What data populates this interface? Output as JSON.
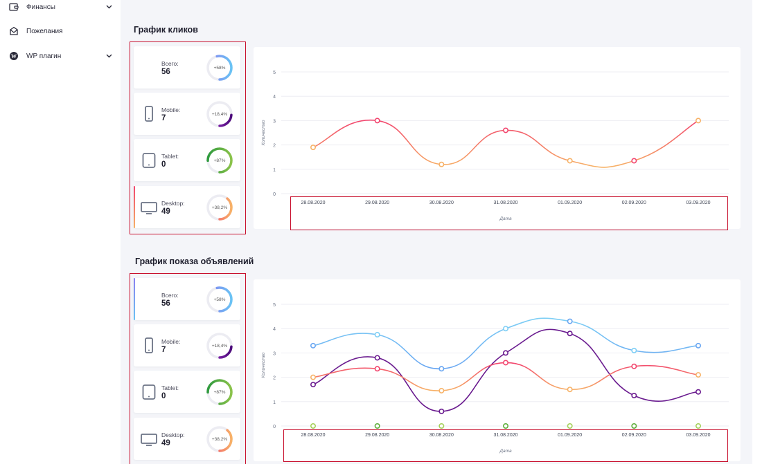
{
  "sidebar": {
    "items": [
      {
        "label": "Финансы",
        "icon": "wallet-icon",
        "has_submenu": true
      },
      {
        "label": "Пожелания",
        "icon": "inbox-icon",
        "has_submenu": false
      },
      {
        "label": "WP плагин",
        "icon": "wordpress-icon",
        "has_submenu": true
      }
    ]
  },
  "clicks": {
    "title": "График кликов",
    "stats": [
      {
        "label": "Всего:",
        "value": "56",
        "percent_label": "+58%",
        "percent": 58,
        "icon": "",
        "gradient": [
          "#69c3f4",
          "#8a7ff0"
        ]
      },
      {
        "label": "Mobile:",
        "value": "7",
        "percent_label": "+18,4%",
        "percent": 18.4,
        "icon": "phone-icon",
        "gradient": [
          "#4b0a7a",
          "#a236c9"
        ]
      },
      {
        "label": "Tablet:",
        "value": "0",
        "percent_label": "+87%",
        "percent": 87,
        "icon": "tablet-icon",
        "gradient": [
          "#8bc34a",
          "#2e9a3e"
        ]
      },
      {
        "label": "Desktop:",
        "value": "49",
        "percent_label": "+38,2%",
        "percent": 38.2,
        "icon": "desktop-icon",
        "gradient": [
          "#f7b267",
          "#f2456e"
        ]
      }
    ],
    "chart_data": {
      "type": "line",
      "x": [
        "28.08.2020",
        "29.08.2020",
        "30.08.2020",
        "31.08.2020",
        "01.09.2020",
        "02.09.2020",
        "03.09.2020"
      ],
      "ylabel": "Количество",
      "xlabel": "Дата",
      "ylim": [
        0,
        5
      ],
      "yticks": [
        "0",
        "1",
        "2",
        "3",
        "4",
        "5"
      ],
      "grid": true,
      "series": [
        {
          "color": "#f2456e",
          "color2": "#f7b267",
          "values": [
            1.9,
            3.0,
            1.2,
            2.6,
            1.35,
            1.35,
            3.0
          ]
        }
      ]
    }
  },
  "impressions": {
    "title": "График показа объявлений",
    "stats": [
      {
        "label": "Всего:",
        "value": "56",
        "percent_label": "+58%",
        "percent": 58,
        "icon": "",
        "gradient": [
          "#69c3f4",
          "#8a7ff0"
        ]
      },
      {
        "label": "Mobile:",
        "value": "7",
        "percent_label": "+18,4%",
        "percent": 18.4,
        "icon": "phone-icon",
        "gradient": [
          "#4b0a7a",
          "#a236c9"
        ]
      },
      {
        "label": "Tablet:",
        "value": "0",
        "percent_label": "+87%",
        "percent": 87,
        "icon": "tablet-icon",
        "gradient": [
          "#8bc34a",
          "#2e9a3e"
        ]
      },
      {
        "label": "Desktop:",
        "value": "49",
        "percent_label": "+38,2%",
        "percent": 38.2,
        "icon": "desktop-icon",
        "gradient": [
          "#f7b267",
          "#f2456e"
        ]
      }
    ],
    "chart_data": {
      "type": "line",
      "x": [
        "28.08.2020",
        "29.08.2020",
        "30.08.2020",
        "31.08.2020",
        "01.09.2020",
        "02.09.2020",
        "03.09.2020"
      ],
      "ylabel": "Количество",
      "xlabel": "Дата",
      "ylim": [
        0,
        5
      ],
      "yticks": [
        "0",
        "1",
        "2",
        "3",
        "4",
        "5"
      ],
      "grid": true,
      "series": [
        {
          "color": "#7fcff5",
          "color2": "#6aa7f2",
          "values": [
            3.3,
            3.75,
            2.35,
            4.0,
            4.3,
            3.1,
            3.3
          ]
        },
        {
          "color": "#6a1b8f",
          "color2": "#6a1b8f",
          "values": [
            1.7,
            2.8,
            0.6,
            3.0,
            3.8,
            1.25,
            1.4
          ]
        },
        {
          "color": "#f2456e",
          "color2": "#f7b267",
          "values": [
            2.0,
            2.35,
            1.45,
            2.6,
            1.5,
            2.45,
            2.1
          ]
        },
        {
          "color": "#5fae3c",
          "color2": "#a5d15a",
          "values": [
            0,
            0,
            0,
            0,
            0,
            0,
            0
          ]
        }
      ]
    }
  }
}
